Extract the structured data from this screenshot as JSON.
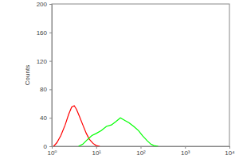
{
  "chart_data": {
    "type": "line",
    "y_label": "Counts",
    "log": "x",
    "xlim": [
      1,
      10000
    ],
    "xticks": [
      {
        "value": 1,
        "label": "10⁰"
      },
      {
        "value": 10,
        "label": "10¹"
      },
      {
        "value": 100,
        "label": "10²"
      },
      {
        "value": 1000,
        "label": "10³"
      },
      {
        "value": 10000,
        "label": "10⁴"
      }
    ],
    "ylim": [
      0,
      200
    ],
    "yticks": [
      0,
      40,
      80,
      120,
      160,
      200
    ],
    "series": [
      {
        "color": "#ff0000",
        "x": [
          1.1,
          1.3,
          1.6,
          2,
          2.4,
          2.8,
          3.2,
          3.6,
          4.2,
          5,
          6,
          7,
          8.5,
          10,
          12
        ],
        "values": [
          0,
          5,
          15,
          30,
          45,
          55,
          57,
          52,
          42,
          30,
          18,
          10,
          4,
          1,
          0
        ]
      },
      {
        "color": "#00ff00",
        "x": [
          4,
          5,
          6,
          8,
          10,
          13,
          17,
          22,
          28,
          35,
          45,
          55,
          70,
          90,
          110,
          140,
          170,
          200,
          250
        ],
        "values": [
          0,
          3,
          8,
          15,
          18,
          22,
          28,
          30,
          35,
          40,
          36,
          33,
          28,
          22,
          15,
          8,
          3,
          1,
          0
        ]
      }
    ]
  }
}
